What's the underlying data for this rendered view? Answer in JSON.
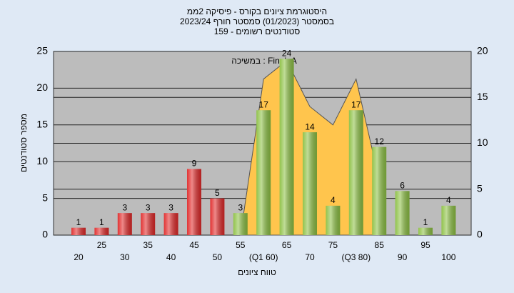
{
  "chart_data": {
    "type": "bar",
    "title": [
      "היסטוגרמת ציונים בקורס - פיסיקה 2ממ",
      "בסמסטר  (01/2023)  סמסטר חורף 2023/24",
      "סטודנטים רשומים - 159"
    ],
    "annotation": "במשיכה : Final_A",
    "y_label": "מספר סטודנטים",
    "x_label": "טווח ציונים",
    "categories": [
      "20",
      "25",
      "30",
      "35",
      "40",
      "45",
      "50",
      "55",
      "(Q1 60)",
      "65",
      "70",
      "75",
      "(Q3 80)",
      "85",
      "90",
      "95",
      "100"
    ],
    "values": [
      1,
      1,
      3,
      3,
      3,
      9,
      5,
      3,
      17,
      24,
      14,
      4,
      17,
      12,
      6,
      1,
      4
    ],
    "colors": [
      "#e02828",
      "#e02828",
      "#e02828",
      "#e02828",
      "#e02828",
      "#e02828",
      "#e02828",
      "#8cc043",
      "#8cc043",
      "#8cc043",
      "#8cc043",
      "#8cc043",
      "#8cc043",
      "#8cc043",
      "#8cc043",
      "#8cc043",
      "#8cc043"
    ],
    "area": {
      "axis": "y2",
      "color": "#ffc54d",
      "values": [
        null,
        null,
        null,
        null,
        null,
        null,
        null,
        0,
        17,
        19,
        14,
        12,
        17,
        6,
        null,
        null,
        null
      ]
    },
    "ylim": [
      0,
      25
    ],
    "yticks": [
      0,
      5,
      10,
      15,
      20,
      25
    ],
    "y2lim": [
      0,
      20
    ],
    "y2ticks": [
      0,
      5,
      10,
      15,
      20
    ],
    "grid": true
  }
}
